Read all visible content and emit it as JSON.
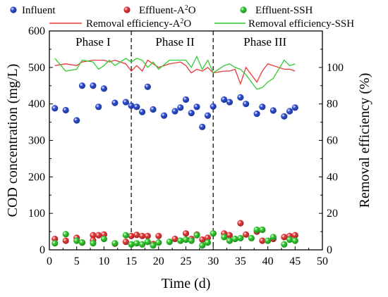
{
  "chart_data": {
    "type": "scatter",
    "xlabel": "Time (d)",
    "ylabel_left": "COD concentration (mg/L)",
    "ylabel_right": "Removal efficiency (%)",
    "xlim": [
      0,
      50
    ],
    "ylim_left": [
      0,
      600
    ],
    "ylim_right": [
      0,
      120
    ],
    "xticks": [
      0,
      5,
      10,
      15,
      20,
      25,
      30,
      35,
      40,
      45,
      50
    ],
    "yticks_left": [
      0,
      100,
      200,
      300,
      400,
      500,
      600
    ],
    "yticks_right": [
      0,
      20,
      40,
      60,
      80,
      100
    ],
    "phase_boundaries": [
      15,
      30
    ],
    "phase_labels": [
      {
        "text": "Phase I",
        "x": 8
      },
      {
        "text": "Phase II",
        "x": 23
      },
      {
        "text": "Phase III",
        "x": 39.5
      }
    ],
    "legend": {
      "influent": "Influent",
      "eff_a2o_prefix": "Effluent-A",
      "eff_ssh": "Effluent-SSH",
      "rem_a2o_prefix": "Removal efficiency-A",
      "rem_ssh": "Removal efficiency-SSH",
      "sup": "2",
      "o_suffix": "O"
    },
    "colors": {
      "influent": "#2e4fd6",
      "effluent_a2o": "#e8383a",
      "effluent_ssh": "#2fcc2f",
      "removal_a2o": "#e8383a",
      "removal_ssh": "#2fcc2f"
    },
    "series": [
      {
        "key": "influent",
        "kind": "scatter",
        "axis": "left",
        "points": [
          [
            1,
            388
          ],
          [
            3,
            383
          ],
          [
            5,
            355
          ],
          [
            6,
            450
          ],
          [
            8,
            450
          ],
          [
            9,
            392
          ],
          [
            10,
            442
          ],
          [
            12,
            403
          ],
          [
            14,
            405
          ],
          [
            15,
            395
          ],
          [
            16,
            392
          ],
          [
            17,
            378
          ],
          [
            18,
            447
          ],
          [
            19,
            385
          ],
          [
            21,
            368
          ],
          [
            23,
            380
          ],
          [
            24,
            390
          ],
          [
            25,
            412
          ],
          [
            26,
            375
          ],
          [
            27,
            392
          ],
          [
            28,
            337
          ],
          [
            29,
            368
          ],
          [
            30,
            393
          ],
          [
            32,
            412
          ],
          [
            33,
            405
          ],
          [
            35,
            418
          ],
          [
            36,
            400
          ],
          [
            38,
            373
          ],
          [
            39,
            392
          ],
          [
            41,
            382
          ],
          [
            43,
            366
          ],
          [
            44,
            380
          ],
          [
            45,
            390
          ]
        ]
      },
      {
        "key": "effluent_a2o",
        "kind": "scatter",
        "axis": "left",
        "points": [
          [
            1,
            30
          ],
          [
            3,
            25
          ],
          [
            5,
            33
          ],
          [
            6,
            20
          ],
          [
            8,
            40
          ],
          [
            8,
            26
          ],
          [
            9,
            40
          ],
          [
            10,
            42
          ],
          [
            12,
            17
          ],
          [
            14,
            22
          ],
          [
            15,
            38
          ],
          [
            16,
            41
          ],
          [
            17,
            38
          ],
          [
            18,
            38
          ],
          [
            19,
            16
          ],
          [
            20,
            38
          ],
          [
            23,
            30
          ],
          [
            25,
            45
          ],
          [
            26,
            30
          ],
          [
            27,
            42
          ],
          [
            28,
            28
          ],
          [
            29,
            33
          ],
          [
            30,
            45
          ],
          [
            32,
            45
          ],
          [
            33,
            40
          ],
          [
            35,
            73
          ],
          [
            36,
            42
          ],
          [
            38,
            50
          ],
          [
            39,
            25
          ],
          [
            41,
            30
          ],
          [
            43,
            35
          ],
          [
            44,
            38
          ],
          [
            45,
            40
          ]
        ]
      },
      {
        "key": "effluent_ssh",
        "kind": "scatter",
        "axis": "left",
        "points": [
          [
            1,
            18
          ],
          [
            3,
            43
          ],
          [
            5,
            25
          ],
          [
            6,
            20
          ],
          [
            8,
            18
          ],
          [
            10,
            30
          ],
          [
            12,
            18
          ],
          [
            14,
            40
          ],
          [
            15,
            15
          ],
          [
            16,
            18
          ],
          [
            17,
            15
          ],
          [
            18,
            22
          ],
          [
            19,
            12
          ],
          [
            20,
            20
          ],
          [
            22,
            22
          ],
          [
            24,
            25
          ],
          [
            25,
            28
          ],
          [
            26,
            25
          ],
          [
            27,
            40
          ],
          [
            28,
            12
          ],
          [
            29,
            20
          ],
          [
            30,
            45
          ],
          [
            32,
            35
          ],
          [
            33,
            25
          ],
          [
            34,
            30
          ],
          [
            35,
            32
          ],
          [
            37,
            32
          ],
          [
            38,
            55
          ],
          [
            39,
            55
          ],
          [
            40,
            25
          ],
          [
            41,
            35
          ],
          [
            43,
            15
          ],
          [
            44,
            28
          ],
          [
            45,
            25
          ]
        ]
      },
      {
        "key": "removal_a2o",
        "kind": "line",
        "axis": "right",
        "points": [
          [
            1,
            101
          ],
          [
            3,
            102
          ],
          [
            5,
            101
          ],
          [
            6,
            103
          ],
          [
            8,
            104
          ],
          [
            10,
            104
          ],
          [
            11,
            103
          ],
          [
            12,
            104
          ],
          [
            14,
            102
          ],
          [
            15,
            98
          ],
          [
            16,
            101
          ],
          [
            17,
            98
          ],
          [
            18,
            104
          ],
          [
            19,
            102
          ],
          [
            20,
            100
          ],
          [
            22,
            102
          ],
          [
            24,
            103
          ],
          [
            25,
            101
          ],
          [
            26,
            97
          ],
          [
            27,
            99
          ],
          [
            28,
            98
          ],
          [
            29,
            100
          ],
          [
            30,
            97
          ],
          [
            32,
            98
          ],
          [
            33,
            98
          ],
          [
            34,
            99
          ],
          [
            35,
            91
          ],
          [
            36,
            100
          ],
          [
            38,
            92
          ],
          [
            39,
            98
          ],
          [
            40,
            102
          ],
          [
            41,
            101
          ],
          [
            43,
            99
          ],
          [
            44,
            99
          ],
          [
            45,
            98
          ]
        ]
      },
      {
        "key": "removal_ssh",
        "kind": "line",
        "axis": "right",
        "points": [
          [
            1,
            105
          ],
          [
            3,
            98
          ],
          [
            5,
            99
          ],
          [
            6,
            104
          ],
          [
            8,
            103
          ],
          [
            9,
            99
          ],
          [
            10,
            101
          ],
          [
            11,
            104
          ],
          [
            12,
            101
          ],
          [
            14,
            105
          ],
          [
            15,
            103
          ],
          [
            16,
            105
          ],
          [
            17,
            104
          ],
          [
            18,
            100
          ],
          [
            19,
            103
          ],
          [
            20,
            99
          ],
          [
            22,
            104
          ],
          [
            24,
            104
          ],
          [
            25,
            104
          ],
          [
            26,
            100
          ],
          [
            27,
            106
          ],
          [
            28,
            99
          ],
          [
            29,
            104
          ],
          [
            30,
            97
          ],
          [
            32,
            101
          ],
          [
            33,
            102
          ],
          [
            34,
            100
          ],
          [
            35,
            99
          ],
          [
            36,
            96
          ],
          [
            38,
            88
          ],
          [
            39,
            89
          ],
          [
            40,
            92
          ],
          [
            41,
            94
          ],
          [
            43,
            104
          ],
          [
            44,
            101
          ],
          [
            45,
            102
          ]
        ]
      }
    ]
  }
}
